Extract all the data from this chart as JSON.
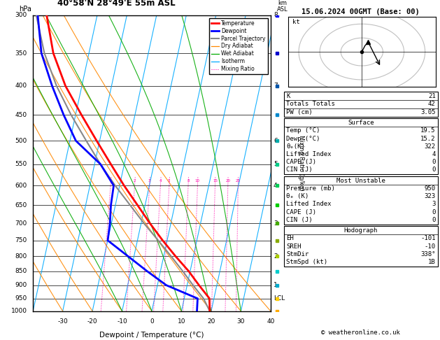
{
  "title_left": "40°58'N 28°49'E 55m ASL",
  "title_right": "15.06.2024 00GMT (Base: 00)",
  "xlabel": "Dewpoint / Temperature (°C)",
  "pressure_ticks": [
    300,
    350,
    400,
    450,
    500,
    550,
    600,
    650,
    700,
    750,
    800,
    850,
    900,
    950,
    1000
  ],
  "temp_range": [
    -40,
    40
  ],
  "temp_ticks": [
    -30,
    -20,
    -10,
    0,
    10,
    20,
    30,
    40
  ],
  "km_labels": {
    "300": "8",
    "350": "",
    "400": "7",
    "450": "",
    "500": "6",
    "550": "5",
    "600": "4",
    "650": "",
    "700": "3",
    "750": "",
    "800": "2",
    "850": "",
    "900": "1",
    "950": "LCL",
    "1000": ""
  },
  "temperature_profile": {
    "pressure": [
      1000,
      950,
      900,
      850,
      800,
      750,
      700,
      650,
      600,
      550,
      500,
      450,
      400,
      350,
      300
    ],
    "temp": [
      19.5,
      18.5,
      14.0,
      9.5,
      4.0,
      -1.5,
      -7.0,
      -12.5,
      -18.5,
      -24.5,
      -31.0,
      -38.0,
      -45.5,
      -52.0,
      -57.0
    ]
  },
  "dewpoint_profile": {
    "pressure": [
      1000,
      950,
      900,
      850,
      800,
      750,
      700,
      650,
      600,
      550,
      500,
      450,
      400,
      350,
      300
    ],
    "temp": [
      15.2,
      14.5,
      3.0,
      -4.5,
      -12.0,
      -20.0,
      -20.5,
      -21.5,
      -22.0,
      -28.0,
      -38.0,
      -44.0,
      -50.0,
      -56.0,
      -60.0
    ]
  },
  "parcel_profile": {
    "pressure": [
      1000,
      950,
      900,
      850,
      800,
      750,
      700,
      650,
      600,
      550,
      500,
      450,
      400,
      350,
      300
    ],
    "temp": [
      19.5,
      16.5,
      12.0,
      7.5,
      2.5,
      -3.0,
      -9.0,
      -15.0,
      -21.5,
      -28.0,
      -34.5,
      -41.5,
      -48.5,
      -55.0,
      -60.5
    ]
  },
  "skew_factor": 27,
  "isotherm_temps": [
    -40,
    -30,
    -20,
    -10,
    0,
    10,
    20,
    30,
    40
  ],
  "dry_adiabat_surface_temps": [
    -40,
    -30,
    -20,
    -10,
    0,
    10,
    20,
    30,
    40
  ],
  "wet_adiabat_surface_temps": [
    -10,
    0,
    10,
    20,
    30
  ],
  "mixing_ratio_values": [
    1,
    2,
    3,
    4,
    5,
    8,
    10,
    15,
    20,
    25
  ],
  "legend_items": [
    {
      "label": "Temperature",
      "color": "#ff0000",
      "lw": 2,
      "ls": "solid"
    },
    {
      "label": "Dewpoint",
      "color": "#0000ff",
      "lw": 2,
      "ls": "solid"
    },
    {
      "label": "Parcel Trajectory",
      "color": "#888888",
      "lw": 1.5,
      "ls": "solid"
    },
    {
      "label": "Dry Adiabat",
      "color": "#ff8800",
      "lw": 0.9,
      "ls": "solid"
    },
    {
      "label": "Wet Adiabat",
      "color": "#00aa00",
      "lw": 0.9,
      "ls": "solid"
    },
    {
      "label": "Isotherm",
      "color": "#00aaff",
      "lw": 0.9,
      "ls": "solid"
    },
    {
      "label": "Mixing Ratio",
      "color": "#ff00aa",
      "lw": 0.8,
      "ls": "dotted"
    }
  ],
  "info_K": "21",
  "info_Totals_Totals": "42",
  "info_PW": "3.05",
  "surface_Temp": "19.5",
  "surface_Dewp": "15.2",
  "surface_theta_e": "322",
  "surface_LI": "4",
  "surface_CAPE": "0",
  "surface_CIN": "0",
  "mu_pressure": "950",
  "mu_theta_e": "323",
  "mu_LI": "3",
  "mu_CAPE": "0",
  "mu_CIN": "0",
  "hodo_EH": "-101",
  "hodo_SREH": "-10",
  "hodo_StmDir": "338°",
  "hodo_StmSpd": "1B",
  "copyright": "© weatheronline.co.uk",
  "bg_color": "#ffffff",
  "isotherm_color": "#00aaff",
  "dry_adiabat_color": "#ff8800",
  "wet_adiabat_color": "#00aa00",
  "mixing_ratio_color": "#ff00aa",
  "temp_color": "#ff0000",
  "dew_color": "#0000ff",
  "parcel_color": "#888888"
}
